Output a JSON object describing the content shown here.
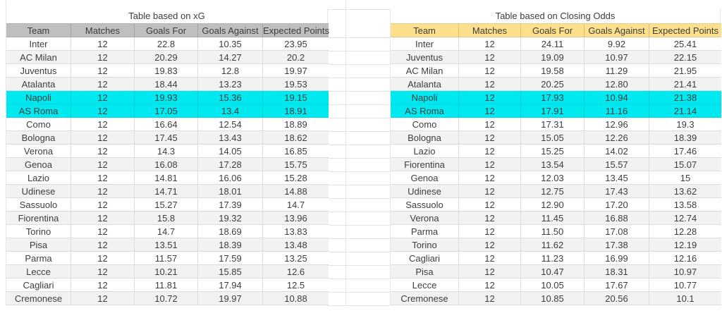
{
  "sheet": {
    "tables": [
      {
        "name": "xg",
        "title": "Table based on xG",
        "columns": [
          "Team",
          "Matches",
          "Goals For",
          "Goals Against",
          "Expected Points"
        ],
        "header_bg": "#bfbfbf",
        "highlight_bg": "#00e9f0",
        "highlighted_teams": [
          "Napoli",
          "AS Roma"
        ],
        "rows": [
          [
            "Inter",
            "12",
            "22.8",
            "10.35",
            "23.95"
          ],
          [
            "AC Milan",
            "12",
            "20.29",
            "14.27",
            "20.2"
          ],
          [
            "Juventus",
            "12",
            "19.83",
            "12.8",
            "19.97"
          ],
          [
            "Atalanta",
            "12",
            "18.44",
            "13.23",
            "19.53"
          ],
          [
            "Napoli",
            "12",
            "19.93",
            "15.36",
            "19.15"
          ],
          [
            "AS Roma",
            "12",
            "17.05",
            "13.4",
            "18.91"
          ],
          [
            "Como",
            "12",
            "16.64",
            "12.54",
            "18.89"
          ],
          [
            "Bologna",
            "12",
            "17.45",
            "13.43",
            "18.62"
          ],
          [
            "Verona",
            "12",
            "14.3",
            "14.05",
            "16.85"
          ],
          [
            "Genoa",
            "12",
            "16.08",
            "17.28",
            "15.75"
          ],
          [
            "Lazio",
            "12",
            "14.81",
            "16.06",
            "15.28"
          ],
          [
            "Udinese",
            "12",
            "14.71",
            "18.01",
            "14.88"
          ],
          [
            "Sassuolo",
            "12",
            "15.27",
            "17.39",
            "14.7"
          ],
          [
            "Fiorentina",
            "12",
            "15.8",
            "19.32",
            "13.96"
          ],
          [
            "Torino",
            "12",
            "14.7",
            "18.69",
            "13.83"
          ],
          [
            "Pisa",
            "12",
            "13.51",
            "18.39",
            "13.48"
          ],
          [
            "Parma",
            "12",
            "11.57",
            "17.59",
            "13.25"
          ],
          [
            "Lecce",
            "12",
            "10.21",
            "15.85",
            "12.6"
          ],
          [
            "Cagliari",
            "12",
            "11.81",
            "17.94",
            "12.5"
          ],
          [
            "Cremonese",
            "12",
            "10.72",
            "19.97",
            "10.88"
          ]
        ]
      },
      {
        "name": "closing-odds",
        "title": "Table based on Closing Odds",
        "columns": [
          "Team",
          "Matches",
          "Goals For",
          "Goals Against",
          "Expected Points"
        ],
        "header_bg": "#fce08d",
        "highlight_bg": "#00e9f0",
        "highlighted_teams": [
          "Napoli",
          "AS Roma"
        ],
        "rows": [
          [
            "Inter",
            "12",
            "24.11",
            "9.92",
            "25.41"
          ],
          [
            "Juventus",
            "12",
            "19.09",
            "10.97",
            "22.15"
          ],
          [
            "AC Milan",
            "12",
            "19.58",
            "11.29",
            "21.95"
          ],
          [
            "Atalanta",
            "12",
            "20.25",
            "12.80",
            "21.41"
          ],
          [
            "Napoli",
            "12",
            "17.93",
            "10.94",
            "21.38"
          ],
          [
            "AS Roma",
            "12",
            "17.91",
            "11.16",
            "21.14"
          ],
          [
            "Como",
            "12",
            "17.31",
            "12.96",
            "19.3"
          ],
          [
            "Bologna",
            "12",
            "15.05",
            "12.26",
            "18.39"
          ],
          [
            "Lazio",
            "12",
            "15.25",
            "14.02",
            "17.46"
          ],
          [
            "Fiorentina",
            "12",
            "13.54",
            "15.57",
            "15.07"
          ],
          [
            "Genoa",
            "12",
            "12.03",
            "13.45",
            "15"
          ],
          [
            "Udinese",
            "12",
            "12.75",
            "17.43",
            "13.62"
          ],
          [
            "Sassuolo",
            "12",
            "12.90",
            "17.20",
            "13.58"
          ],
          [
            "Verona",
            "12",
            "11.45",
            "16.88",
            "12.74"
          ],
          [
            "Parma",
            "12",
            "11.50",
            "17.08",
            "12.28"
          ],
          [
            "Torino",
            "12",
            "11.62",
            "17.38",
            "12.19"
          ],
          [
            "Cagliari",
            "12",
            "11.23",
            "16.99",
            "12.16"
          ],
          [
            "Pisa",
            "12",
            "10.47",
            "18.31",
            "10.97"
          ],
          [
            "Lecce",
            "12",
            "10.05",
            "17.67",
            "10.77"
          ],
          [
            "Cremonese",
            "12",
            "10.85",
            "20.56",
            "10.1"
          ]
        ]
      }
    ]
  },
  "colors": {
    "banded_row": "#f2f2f2",
    "grid_line": "#e3e3e3",
    "cell_border": "#dcdcdc",
    "text": "#3d3d3d"
  }
}
